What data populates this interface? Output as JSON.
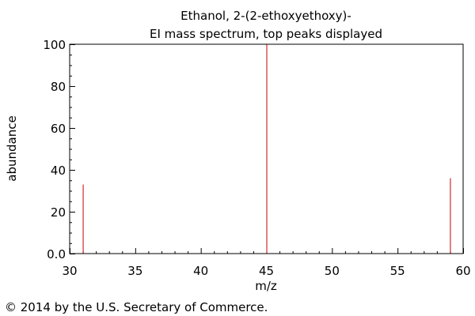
{
  "chart_data": {
    "type": "bar",
    "title": "Ethanol, 2-(2-ethoxyethoxy)-",
    "subtitle": "EI mass spectrum, top peaks displayed",
    "xlabel": "m/z",
    "ylabel": "abundance",
    "xlim": [
      30,
      60
    ],
    "ylim": [
      0,
      100
    ],
    "x_ticks": [
      30,
      35,
      40,
      45,
      50,
      55,
      60
    ],
    "x_tick_labels": [
      "30",
      "35",
      "40",
      "45",
      "50",
      "55",
      "60"
    ],
    "y_ticks": [
      0,
      20,
      40,
      60,
      80,
      100
    ],
    "y_tick_labels": [
      "0.0",
      "20",
      "40",
      "60",
      "80",
      "100"
    ],
    "peaks": [
      {
        "mz": 31,
        "abundance": 33
      },
      {
        "mz": 45,
        "abundance": 100
      },
      {
        "mz": 59,
        "abundance": 36
      }
    ],
    "peak_color": "#cc0000",
    "grid": false
  },
  "footer": {
    "copyright": "© 2014 by the U.S. Secretary of Commerce."
  }
}
